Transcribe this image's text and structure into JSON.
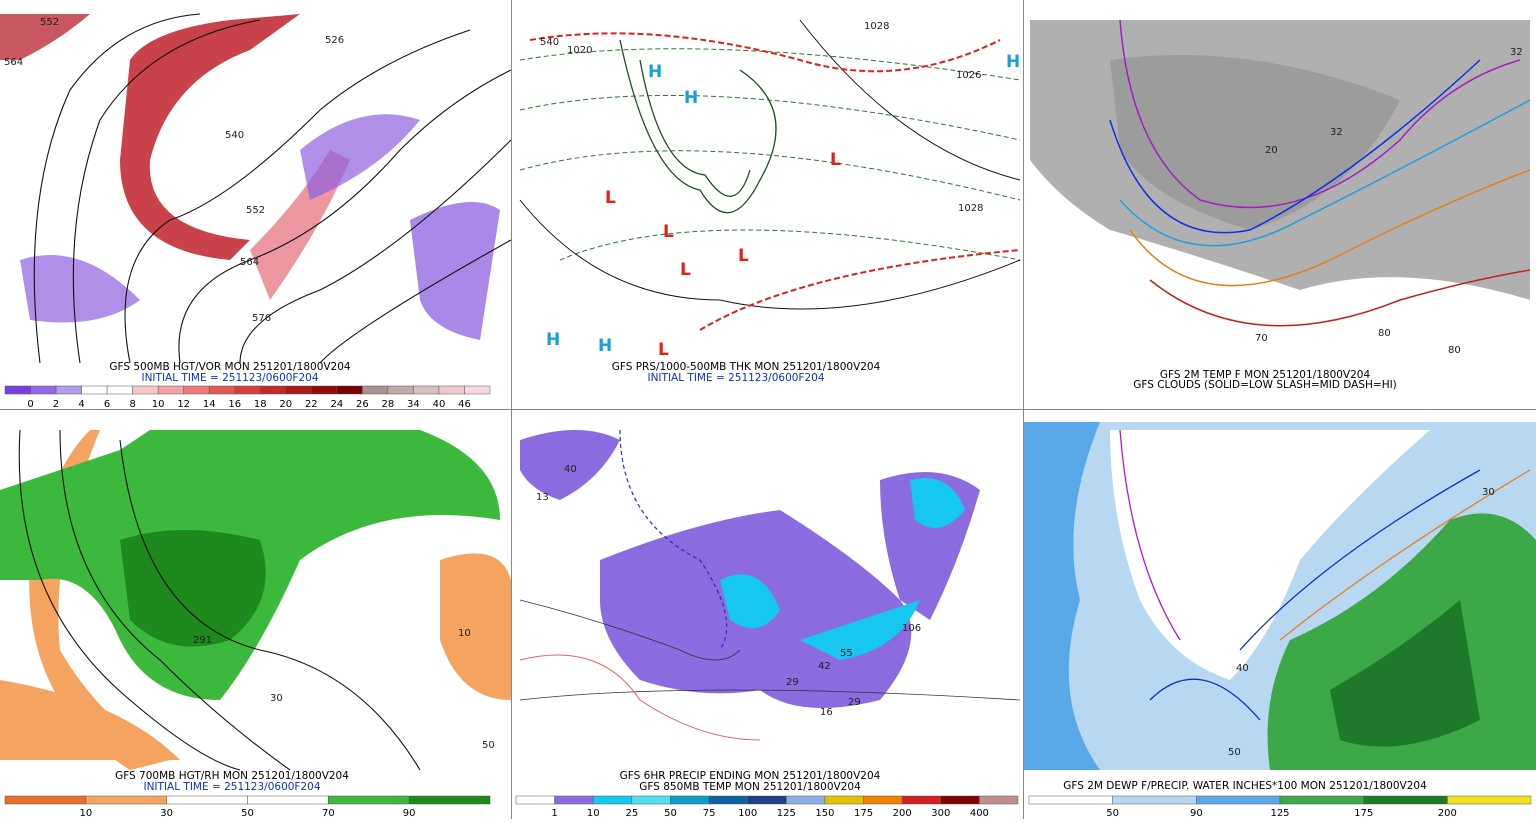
{
  "panels": [
    {
      "captions": [
        "GFS 500MB HGT/VOR MON 251201/1800V204",
        "INITIAL TIME = 251123/0600F204"
      ],
      "colorbar": {
        "labels": [
          0,
          2,
          4,
          6,
          8,
          10,
          12,
          14,
          16,
          18,
          20,
          22,
          24,
          26,
          28,
          34,
          40,
          46
        ],
        "colors": [
          "#7b3fe0",
          "#9467e6",
          "#b39aee",
          "#ffffff",
          "#ffffff",
          "#f6c9c9",
          "#f2a4a4",
          "#ec7c7c",
          "#e05a5a",
          "#d43d3d",
          "#c22a2a",
          "#a81818",
          "#8f0a0a",
          "#7a0000",
          "#a89292",
          "#c2a8a8",
          "#d9c0c0",
          "#f0c8d0",
          "#f8d8e0"
        ]
      },
      "map_labels": [
        552,
        564,
        526,
        540,
        552,
        564,
        576
      ]
    },
    {
      "captions": [
        "GFS PRS/1000-500MB THK MON 251201/1800V204",
        "INITIAL TIME = 251123/0600F204"
      ],
      "map_labels": [
        "540",
        "1020",
        "1028",
        "1026",
        "1028",
        "H",
        "H",
        "H",
        "H",
        "H",
        "L",
        "L",
        "L",
        "L",
        "L",
        "L"
      ]
    },
    {
      "captions": [
        "GFS 2M TEMP F MON 251201/1800V204",
        "GFS CLOUDS (SOLID=LOW SLASH=MID DASH=HI)"
      ],
      "map_labels": [
        32,
        32,
        20,
        70,
        80,
        80
      ]
    },
    {
      "captions": [
        "GFS 700MB HGT/RH MON 251201/1800V204",
        "INITIAL TIME = 251123/0600F204"
      ],
      "colorbar": {
        "labels": [
          10,
          30,
          50,
          70,
          90
        ],
        "colors": [
          "#e8702a",
          "#f4a460",
          "#ffffff",
          "#ffffff",
          "#3cb83c",
          "#1e8a1e"
        ]
      },
      "map_labels": [
        291,
        50,
        10,
        30
      ]
    },
    {
      "captions": [
        "GFS 6HR PRECIP ENDING MON 251201/1800V204",
        "GFS 850MB TEMP MON 251201/1800V204"
      ],
      "colorbar": {
        "labels": [
          1,
          10,
          25,
          50,
          75,
          100,
          125,
          150,
          175,
          200,
          300,
          400
        ],
        "colors": [
          "#ffffff",
          "#8c6be0",
          "#16c7f0",
          "#4fe0f0",
          "#0f9cc8",
          "#0a62a0",
          "#1e3f80",
          "#8ab0e0",
          "#e0c000",
          "#f08000",
          "#d02020",
          "#800000",
          "#c09090"
        ]
      },
      "map_labels": [
        40,
        13,
        29,
        42,
        55,
        16,
        29,
        106
      ]
    },
    {
      "captions": [
        "GFS 2M DEWP F/PRECIP. WATER INCHES*100 MON 251201/1800V204"
      ],
      "colorbar": {
        "labels": [
          50,
          90,
          125,
          175,
          200
        ],
        "colors": [
          "#ffffff",
          "#b8d8f2",
          "#5aa8e8",
          "#3ca848",
          "#1e7a2a",
          "#f0e020"
        ]
      },
      "map_labels": [
        30,
        40,
        50
      ]
    }
  ]
}
